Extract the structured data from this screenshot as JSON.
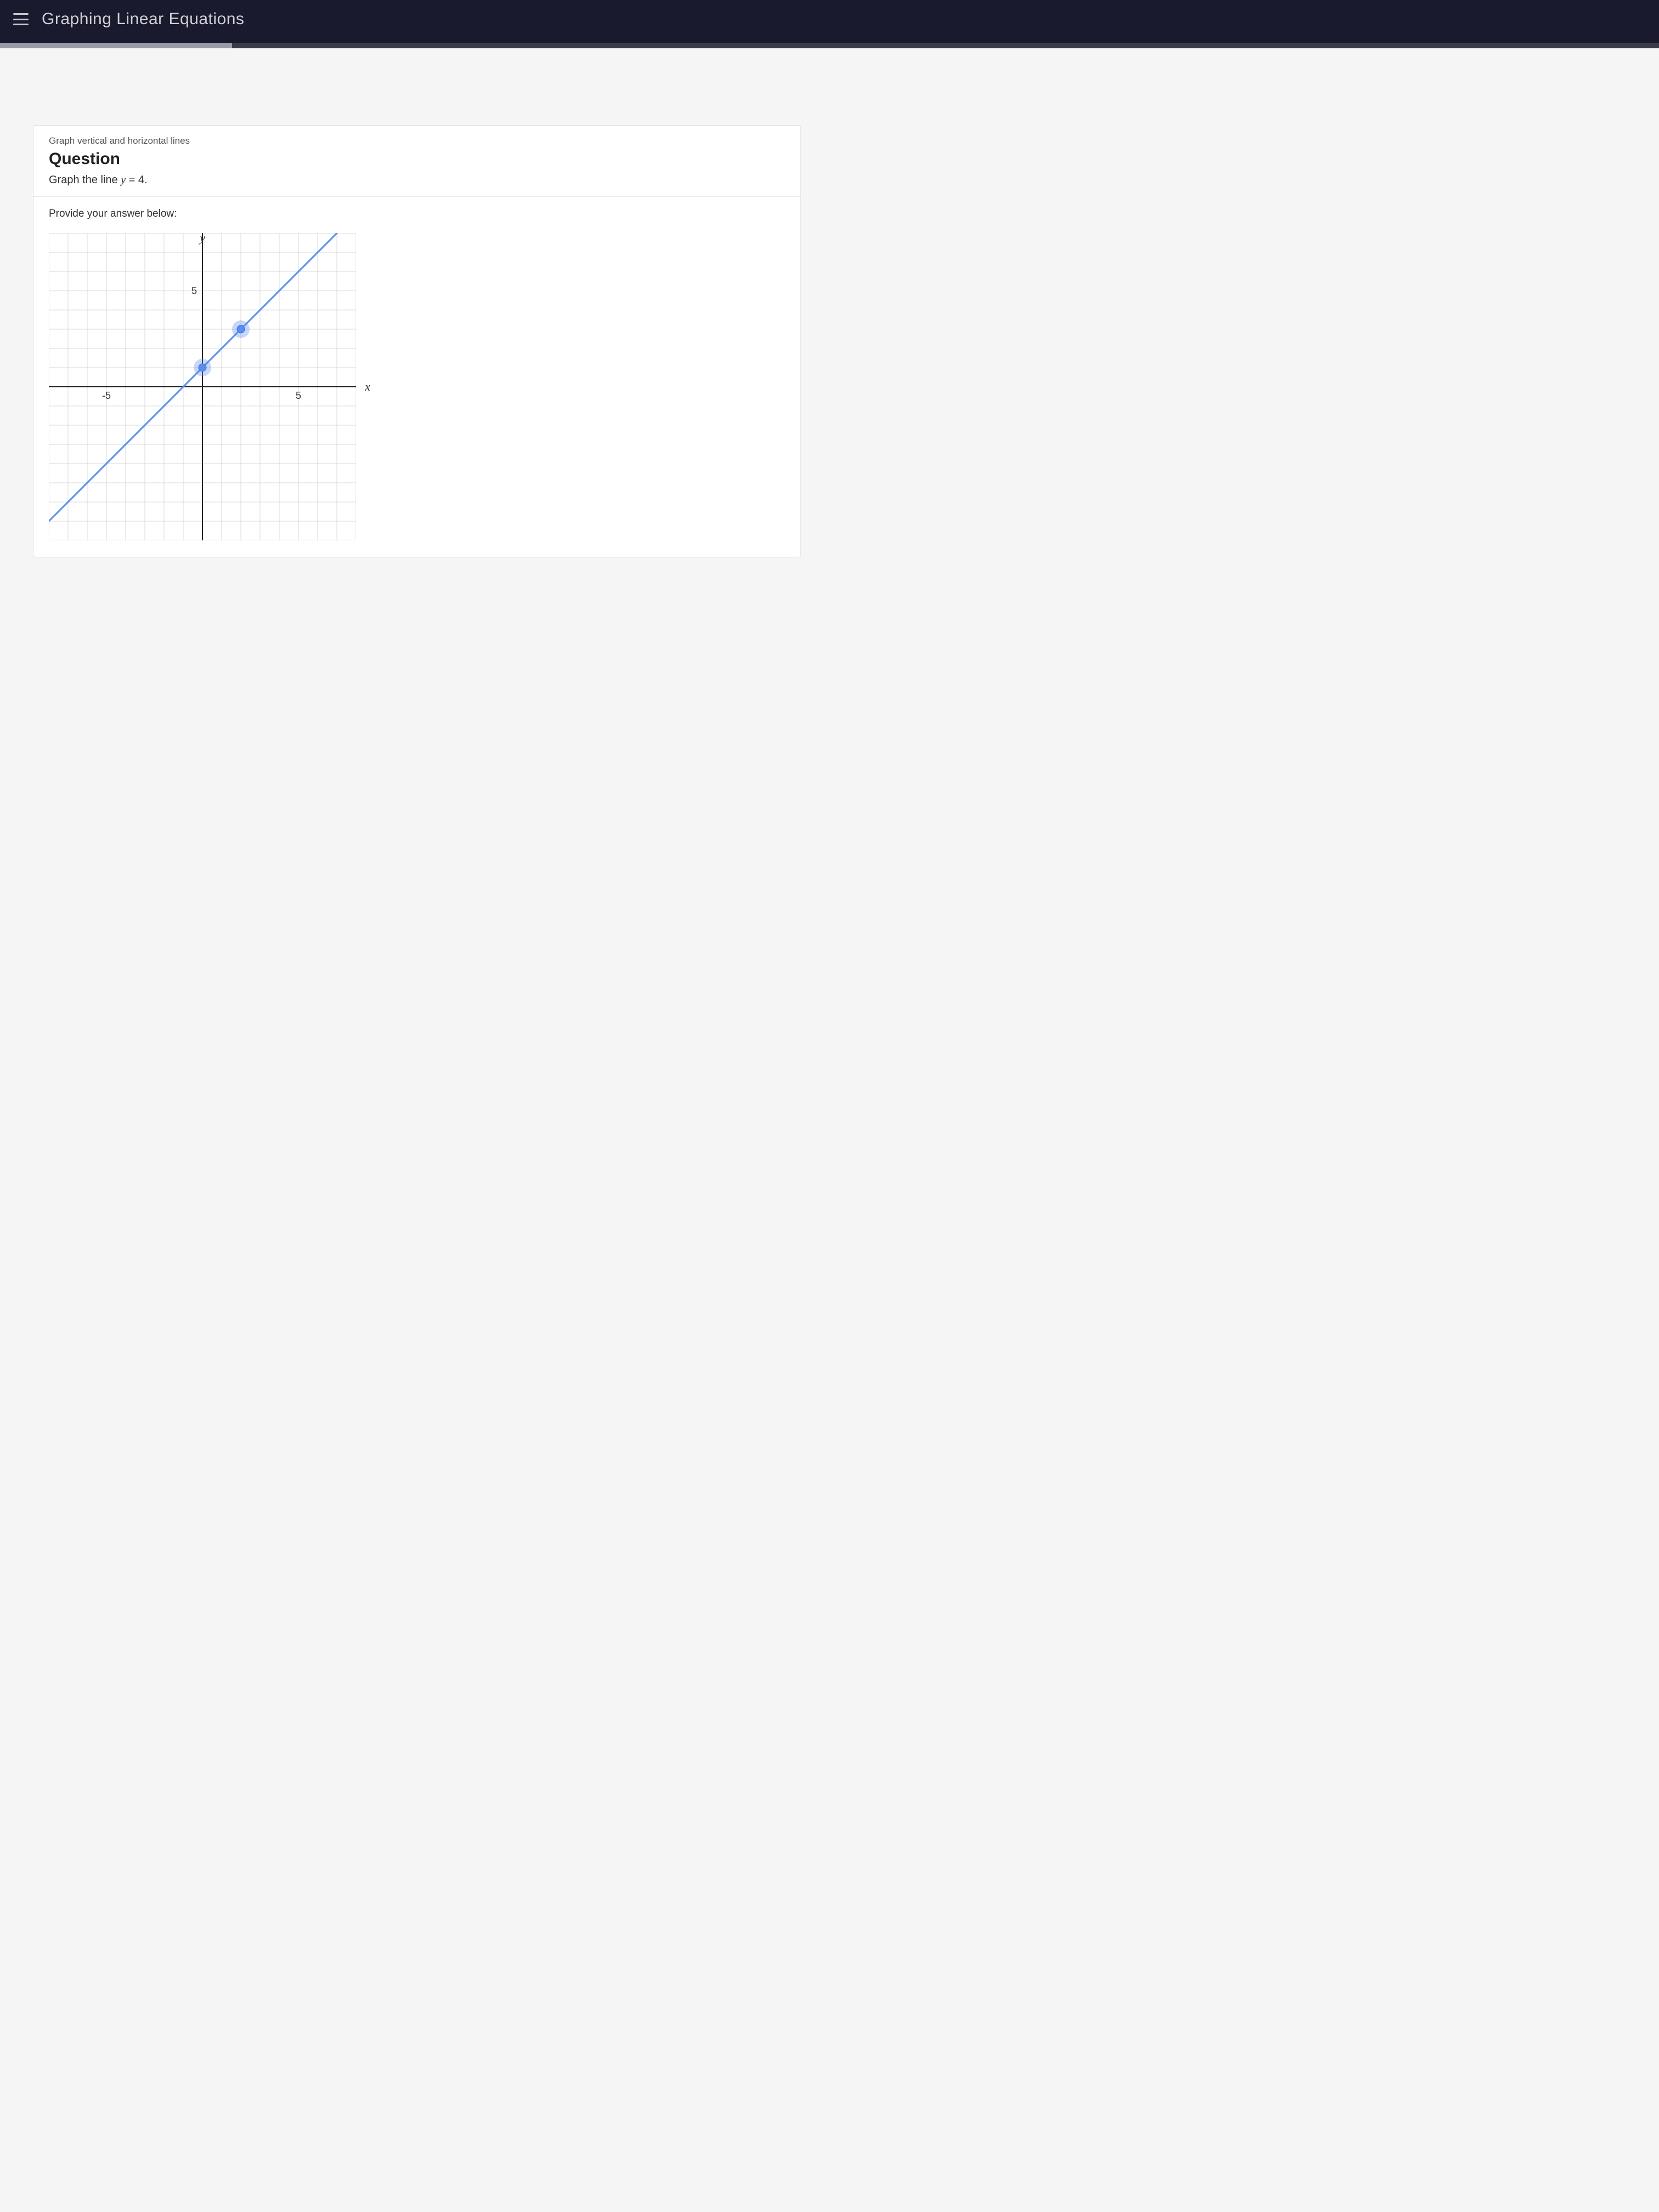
{
  "topbar": {
    "title": "Graphing Linear Equations",
    "progress_percent": 14
  },
  "question": {
    "topic": "Graph vertical and horizontal lines",
    "label": "Question",
    "prompt_pre": "Graph the line ",
    "prompt_eq_lhs": "y",
    "prompt_eq_rhs": " = 4.",
    "answer_label": "Provide your answer below:"
  },
  "graph": {
    "type": "line",
    "y_axis_label": "y",
    "x_axis_label": "x",
    "xlim": [
      -8,
      8
    ],
    "ylim": [
      -8,
      8
    ],
    "grid_step": 1,
    "tick_labels_y": [
      5
    ],
    "tick_labels_x_neg": [
      -5
    ],
    "tick_labels_x_pos": [
      5
    ],
    "grid_color": "#d9d9d9",
    "axis_color": "#222222",
    "background_color": "#ffffff",
    "line": {
      "color": "#5b8def",
      "width": 3,
      "p1": {
        "x": -8,
        "y": -7
      },
      "p2": {
        "x": 8,
        "y": 9
      }
    },
    "points": [
      {
        "x": 0,
        "y": 1
      },
      {
        "x": 2,
        "y": 3
      }
    ],
    "point_color": "#5b8def",
    "point_halo_opacity": 0.35,
    "point_radius": 7,
    "point_halo_radius": 16
  }
}
